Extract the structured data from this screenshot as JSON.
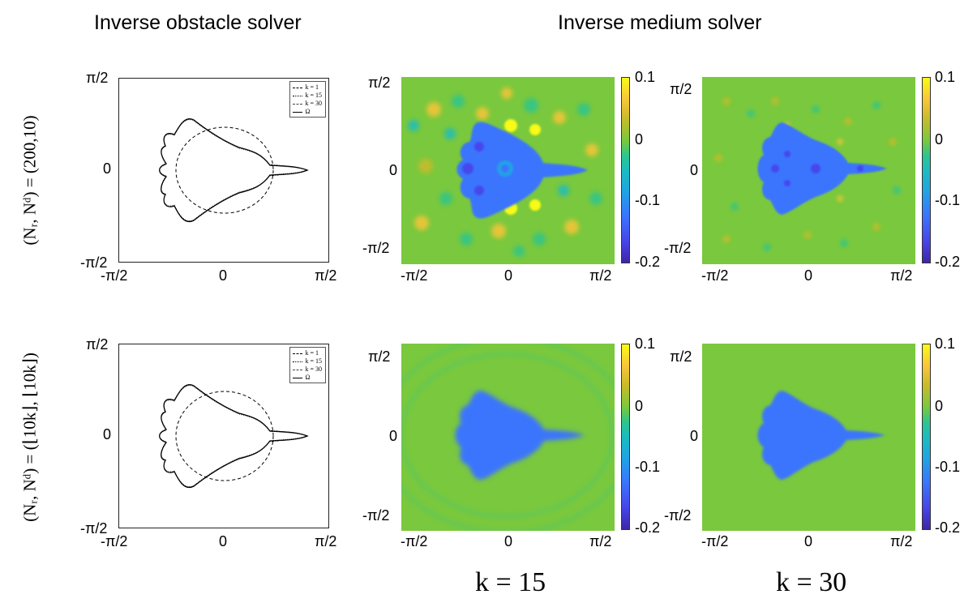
{
  "headings": {
    "obstacle": "Inverse obstacle solver",
    "medium": "Inverse medium solver"
  },
  "row_labels": {
    "row1": "(Nᵣ, Nᵈ) = (200,10)",
    "row2": "(Nᵣ, Nᵈ) = (⌊10k⌋, ⌊10k⌋)"
  },
  "axis_ticks": {
    "y_top": "π/2",
    "y_mid": "0",
    "y_bot": "-π/2",
    "x_left": "-π/2",
    "x_mid": "0",
    "x_right": "π/2"
  },
  "legend": [
    "k = 1",
    "k = 15",
    "k = 30",
    "Ω"
  ],
  "colorbar": {
    "ticks": [
      "0.1",
      "0",
      "-0.1",
      "-0.2"
    ],
    "colors": [
      "#3e26a8",
      "#3b74fd",
      "#1bbcc0",
      "#7ac83d",
      "#f9fb15"
    ]
  },
  "k_labels": [
    "k = 15",
    "k = 30"
  ],
  "chart_data": [
    {
      "type": "line",
      "panel": "obstacle-row1",
      "series": [
        {
          "name": "k = 1"
        },
        {
          "name": "k = 15"
        },
        {
          "name": "k = 30"
        },
        {
          "name": "Ω"
        }
      ],
      "xlim": [
        "-π/2",
        "π/2"
      ],
      "ylim": [
        "-π/2",
        "π/2"
      ]
    },
    {
      "type": "line",
      "panel": "obstacle-row2",
      "series": [
        {
          "name": "k = 1"
        },
        {
          "name": "k = 15"
        },
        {
          "name": "k = 30"
        },
        {
          "name": "Ω"
        }
      ],
      "xlim": [
        "-π/2",
        "π/2"
      ],
      "ylim": [
        "-π/2",
        "π/2"
      ]
    },
    {
      "type": "heatmap",
      "panel": "medium-row1-k15",
      "clim": [
        -0.2,
        0.1
      ]
    },
    {
      "type": "heatmap",
      "panel": "medium-row1-k30",
      "clim": [
        -0.2,
        0.1
      ]
    },
    {
      "type": "heatmap",
      "panel": "medium-row2-k15",
      "clim": [
        -0.2,
        0.1
      ]
    },
    {
      "type": "heatmap",
      "panel": "medium-row2-k30",
      "clim": [
        -0.2,
        0.1
      ]
    }
  ]
}
